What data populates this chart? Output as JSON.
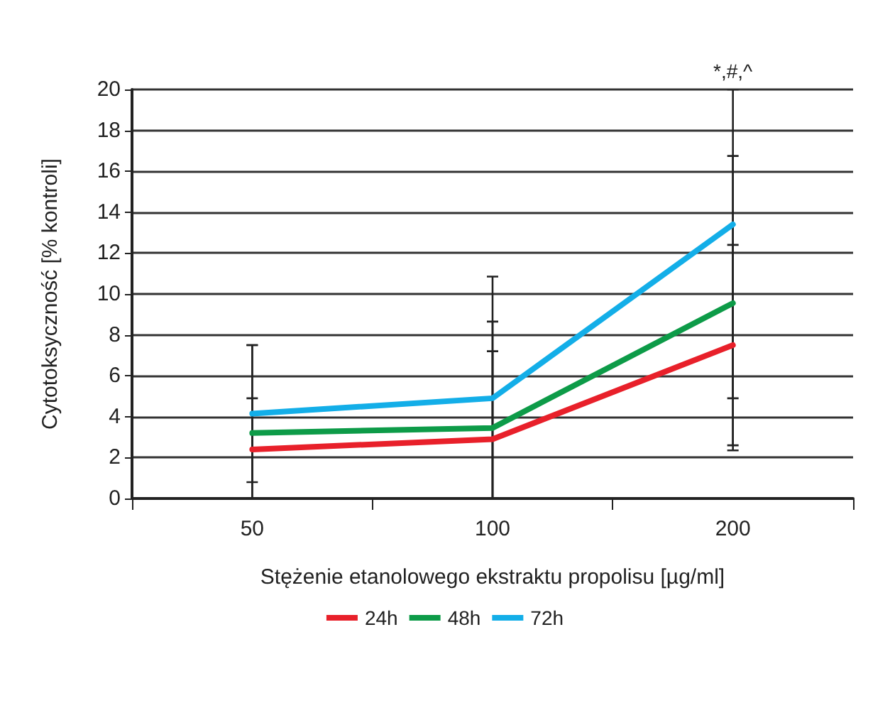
{
  "chart_data": {
    "type": "line",
    "xlabel": "Stężenie etanolowego ekstraktu propolisu [µg/ml]",
    "ylabel": "Cytotoksyczność [% kontroli]",
    "categories": [
      "50",
      "100",
      "200"
    ],
    "series": [
      {
        "name": "24h",
        "color": "#e8202a",
        "values": [
          2.4,
          2.9,
          7.5
        ],
        "errors": [
          [
            0,
            4.9
          ],
          [
            0,
            7.2
          ],
          [
            2.6,
            12.4
          ]
        ]
      },
      {
        "name": "48h",
        "color": "#0d9b48",
        "values": [
          3.2,
          3.45,
          9.55
        ],
        "errors": [
          [
            0,
            7.5
          ],
          [
            0,
            8.65
          ],
          [
            2.35,
            16.75
          ]
        ]
      },
      {
        "name": "72h",
        "color": "#13aee8",
        "values": [
          4.15,
          4.9,
          13.4
        ],
        "errors": [
          [
            0.8,
            7.5
          ],
          [
            0,
            10.85
          ],
          [
            4.9,
            20
          ]
        ]
      }
    ],
    "ylim": [
      0,
      20
    ],
    "yticks": [
      0,
      2,
      4,
      6,
      8,
      10,
      12,
      14,
      16,
      18,
      20
    ],
    "grid": "y",
    "legend": "bottom",
    "marker": "none",
    "line_style": "solid",
    "annotations": [
      "*,#,^"
    ]
  }
}
